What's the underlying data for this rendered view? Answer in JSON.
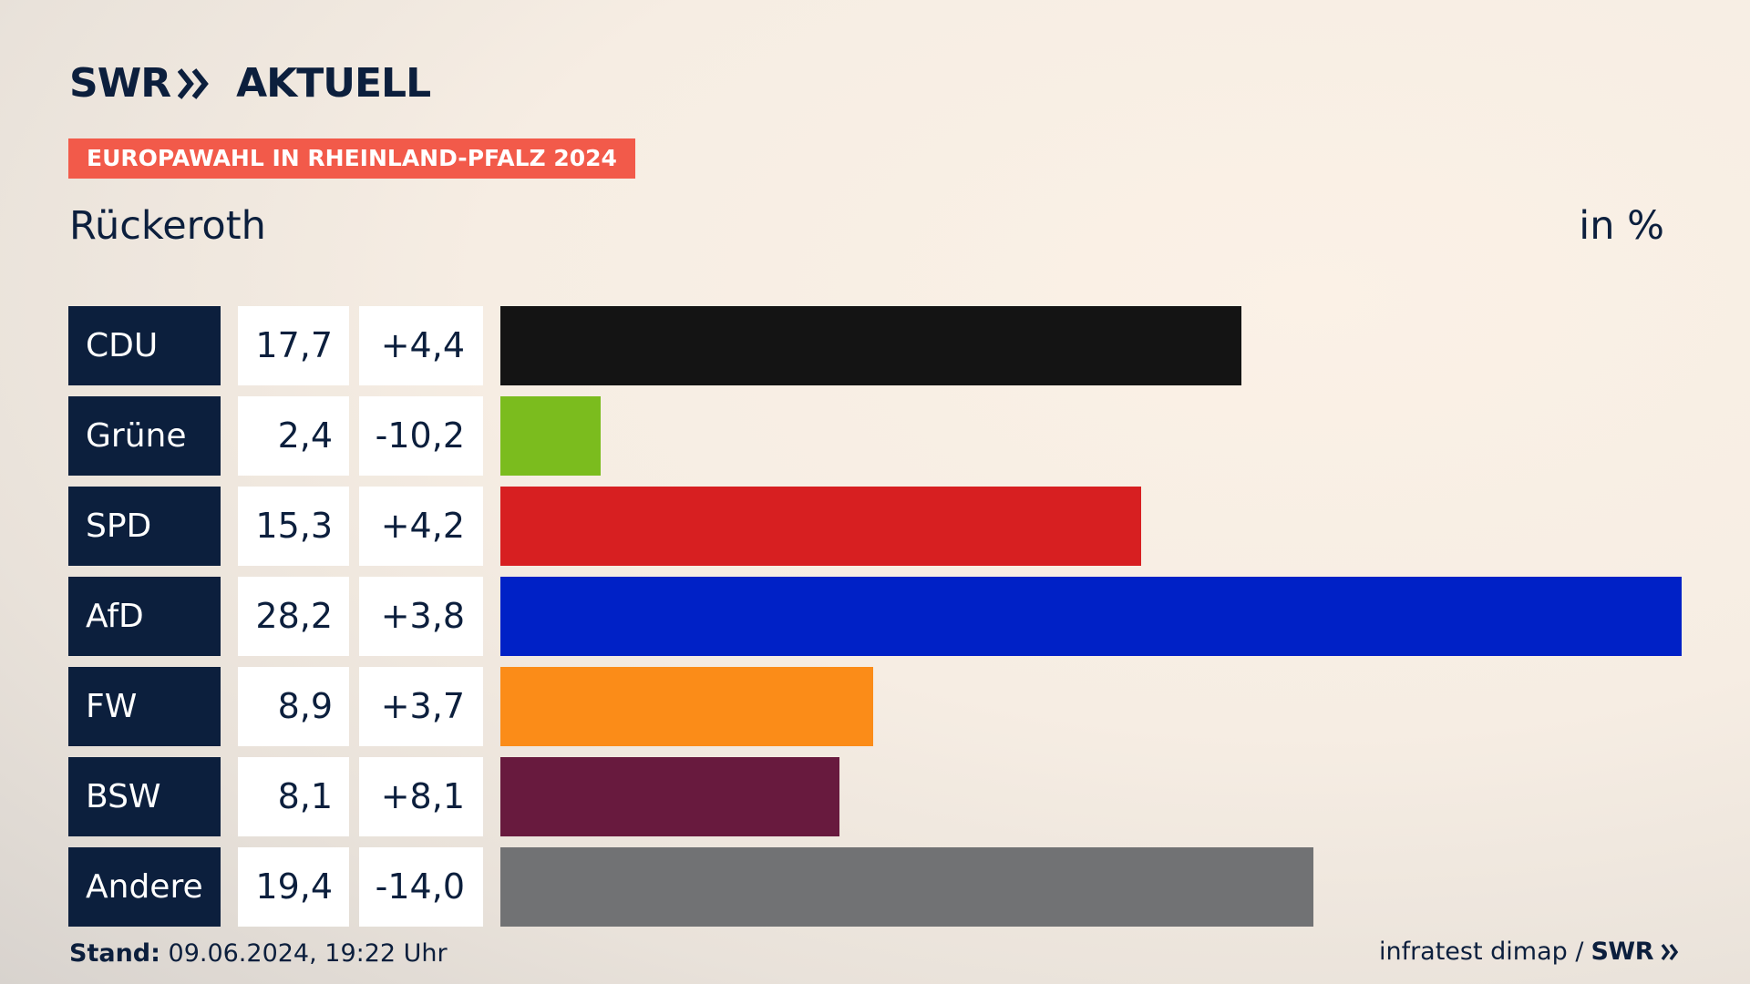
{
  "header": {
    "logo_left": "SWR",
    "logo_right": "AKTUELL",
    "tag": "EUROPAWAHL IN RHEINLAND-PFALZ 2024",
    "location": "Rückeroth",
    "unit": "in %"
  },
  "footer": {
    "stand_label": "Stand:",
    "stand_value": "09.06.2024, 19:22 Uhr",
    "source": "infratest dimap /",
    "source_logo": "SWR"
  },
  "chart_data": {
    "type": "bar",
    "orientation": "horizontal",
    "title": "",
    "categories": [
      "CDU",
      "Grüne",
      "SPD",
      "AfD",
      "FW",
      "BSW",
      "Andere"
    ],
    "values": [
      17.7,
      2.4,
      15.3,
      28.2,
      8.9,
      8.1,
      19.4
    ],
    "value_labels": [
      "17,7",
      "2,4",
      "15,3",
      "28,2",
      "8,9",
      "8,1",
      "19,4"
    ],
    "diff_labels": [
      "+4,4",
      "-10,2",
      "+4,2",
      "+3,8",
      "+3,7",
      "+8,1",
      "-14,0"
    ],
    "colors": [
      "#141414",
      "#7bbc1e",
      "#d71f21",
      "#0021c6",
      "#fb8c18",
      "#681a3e",
      "#717274"
    ],
    "xlim": [
      0,
      28.2
    ],
    "grid": false
  },
  "colors": {
    "navy": "#0c1f3d",
    "tag_red": "#f25a4a"
  }
}
